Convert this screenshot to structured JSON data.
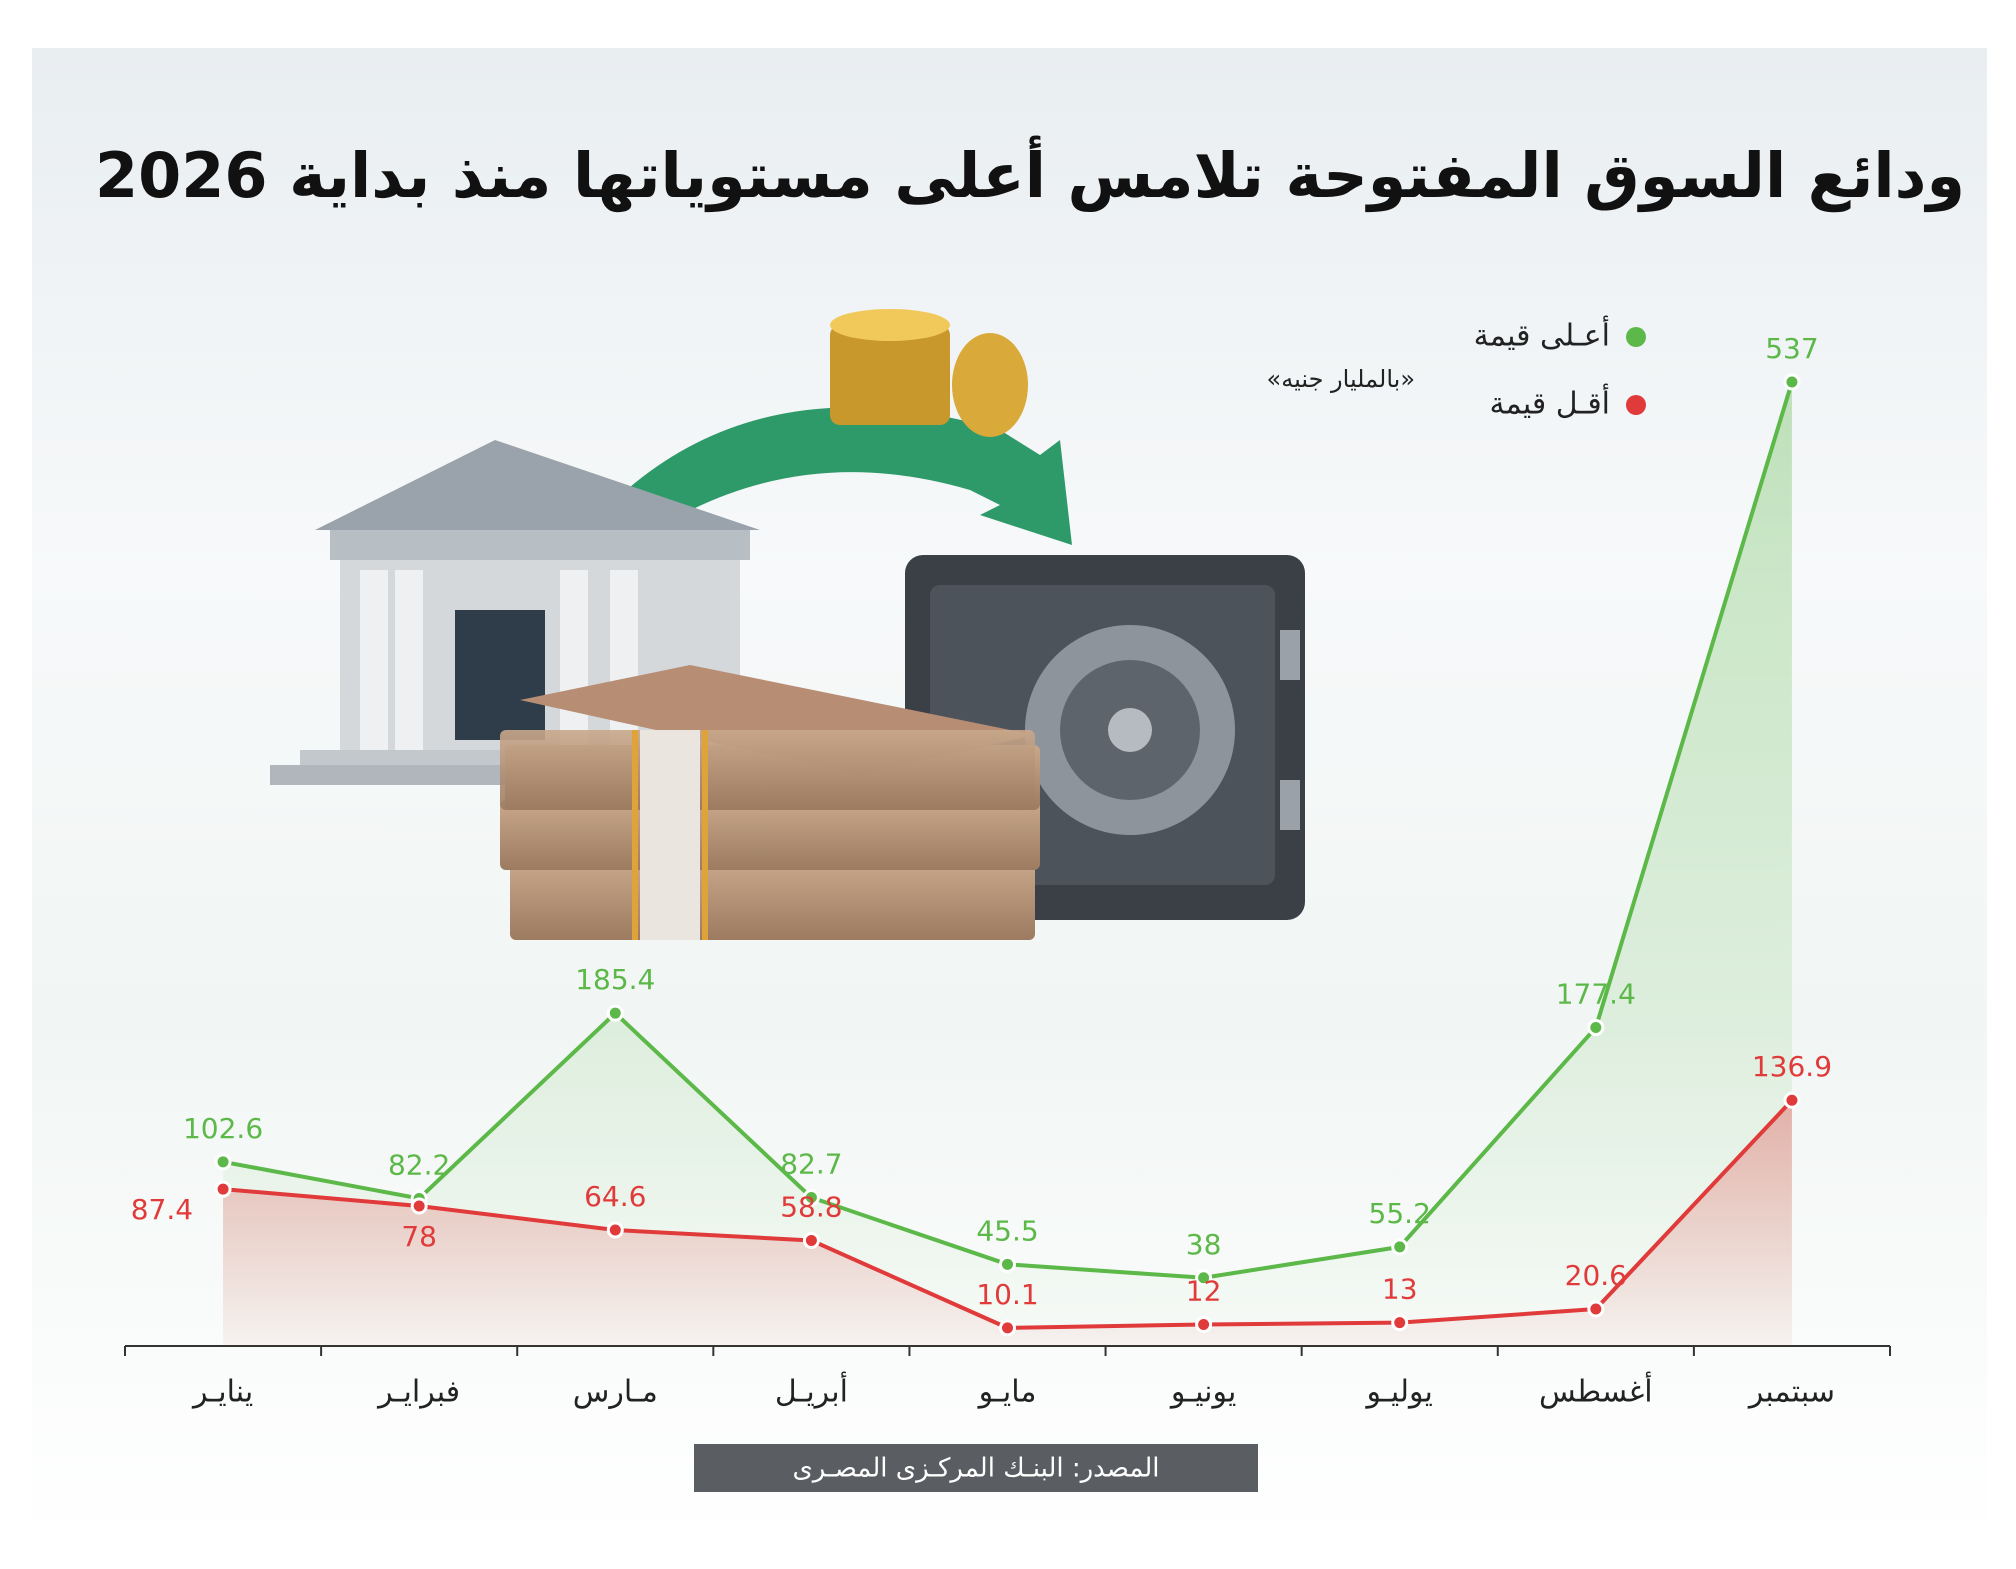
{
  "chart_data": {
    "type": "line",
    "title": "ودائع السوق المفتوحة تلامس أعلى مستوياتها منذ بداية 2026",
    "subtitle": "«بالمليار جنيه»",
    "source": "المصدر: البنـك المركـزى المصـرى",
    "categories": [
      "ينايـر",
      "فبرايـر",
      "مـارس",
      "أبريـل",
      "مايـو",
      "يونيـو",
      "يوليـو",
      "أغسطس",
      "سبتمبر"
    ],
    "series": [
      {
        "name": "أعـلى قيمة",
        "color": "#5cb848",
        "values": [
          102.6,
          82.2,
          185.4,
          82.7,
          45.5,
          38,
          55.2,
          177.4,
          537
        ]
      },
      {
        "name": "أقـل قيمة",
        "color": "#e03a3a",
        "values": [
          87.4,
          78,
          64.6,
          58.8,
          10.1,
          12,
          13,
          20.6,
          136.9
        ]
      }
    ],
    "ylim": [
      0,
      537
    ],
    "grid": false
  }
}
